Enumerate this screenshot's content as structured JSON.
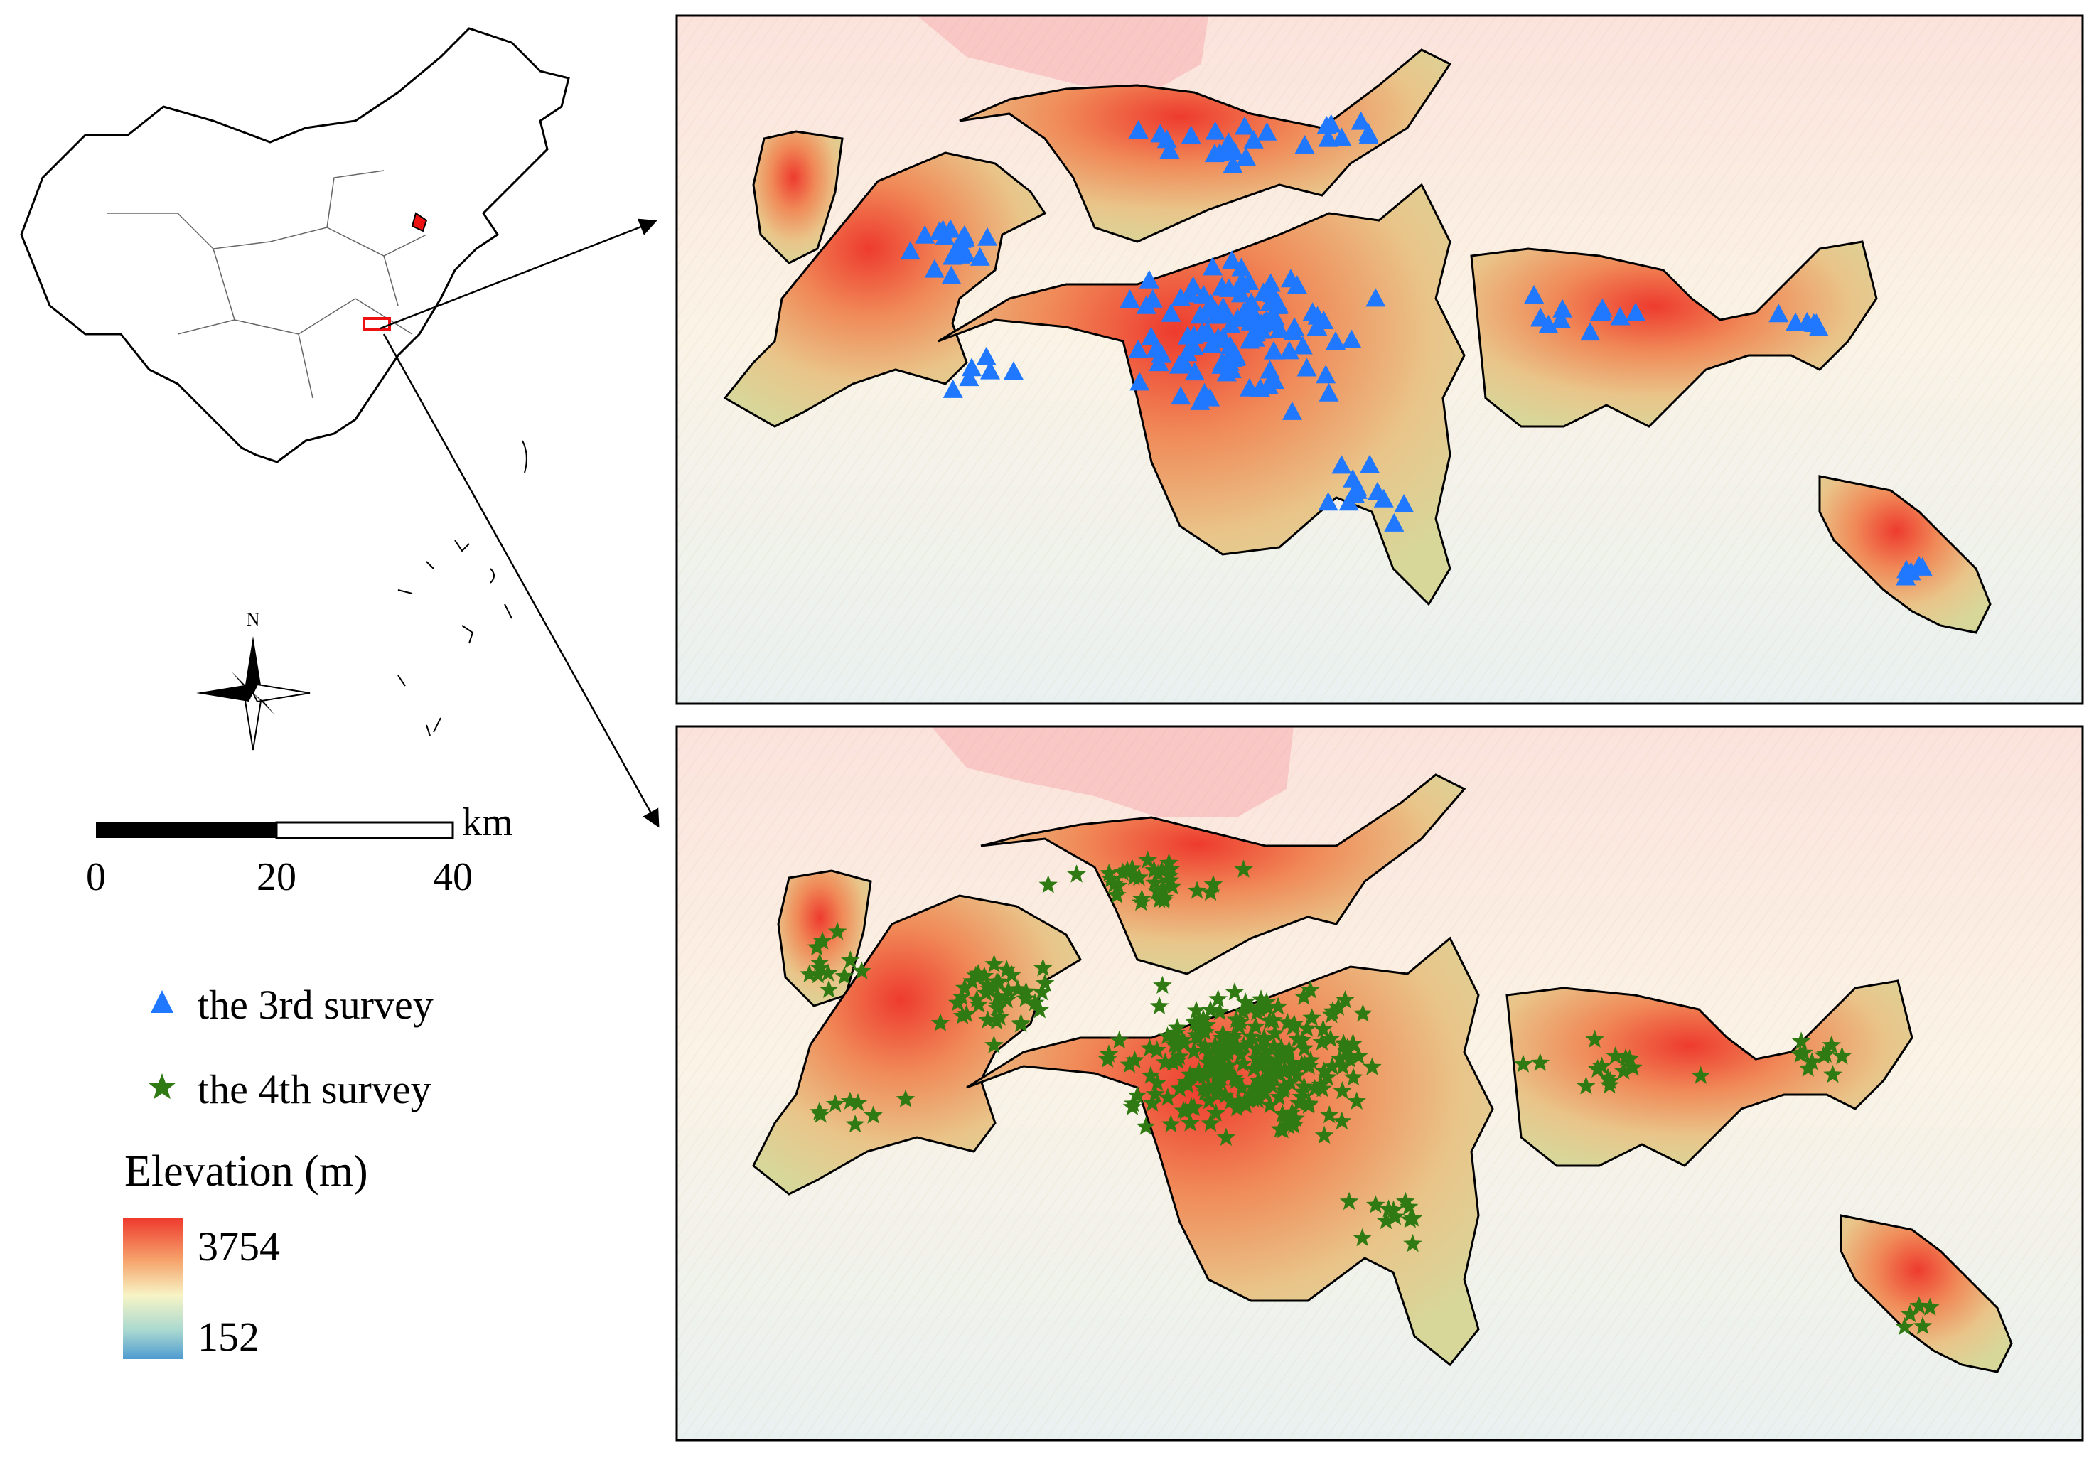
{
  "compass": {
    "north_label": "N"
  },
  "scale_bar": {
    "unit": "km",
    "ticks": [
      "0",
      "20",
      "40"
    ]
  },
  "legend": {
    "items": [
      {
        "label": "the 3rd survey",
        "symbol": "triangle",
        "color": "#1f78ff"
      },
      {
        "label": "the 4th survey",
        "symbol": "star",
        "color": "#2f7a12"
      }
    ],
    "elevation_title": "Elevation (m)",
    "elevation_max": "3754",
    "elevation_min": "152",
    "ramp_colors": [
      "#ee3b2e",
      "#f6a46c",
      "#f7f4c6",
      "#a8d8d0",
      "#4e9bd0"
    ]
  },
  "maps": [
    {
      "survey": "the 3rd survey",
      "marker": "triangle",
      "color": "#1f78ff"
    },
    {
      "survey": "the 4th survey",
      "marker": "star",
      "color": "#2f7a12"
    }
  ]
}
